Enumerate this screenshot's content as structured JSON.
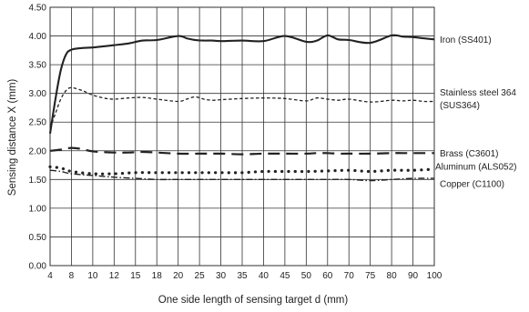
{
  "chart_data": {
    "type": "line",
    "title": "",
    "xlabel": "One side length of sensing target d (mm)",
    "ylabel": "Sensing distance X (mm)",
    "ylim": [
      0,
      4.5
    ],
    "x_tick_labels": [
      "4",
      "8",
      "10",
      "12",
      "15",
      "18",
      "20",
      "25",
      "30",
      "35",
      "40",
      "45",
      "50",
      "60",
      "70",
      "75",
      "80",
      "90",
      "100"
    ],
    "y_tick_labels": [
      "0.00",
      "0.50",
      "1.00",
      "1.50",
      "2.00",
      "2.50",
      "3.00",
      "3.50",
      "4.00",
      "4.50"
    ],
    "x_scale": "categorical, evenly spaced ticks",
    "grid": true,
    "legend": "labels at right end of each line",
    "series": [
      {
        "name": "Iron (SS401)",
        "label_lines": [
          "Iron (SS401)"
        ],
        "style": "solid",
        "x": [
          4,
          5,
          6,
          7,
          8,
          9,
          10,
          11,
          12,
          14,
          16,
          18,
          20,
          22,
          24,
          26,
          28,
          30,
          35,
          40,
          45,
          50,
          55,
          60,
          65,
          70,
          75,
          80,
          85,
          90,
          95,
          100
        ],
        "values": [
          2.3,
          2.9,
          3.4,
          3.68,
          3.76,
          3.79,
          3.8,
          3.82,
          3.84,
          3.87,
          3.92,
          3.93,
          4.0,
          3.96,
          3.93,
          3.92,
          3.92,
          3.91,
          3.92,
          3.91,
          4.0,
          3.9,
          3.92,
          4.01,
          3.94,
          3.93,
          3.88,
          4.01,
          3.99,
          3.98,
          3.96,
          3.94
        ]
      },
      {
        "name": "Stainless steel 364 (SUS364)",
        "label_lines": [
          "Stainless steel 364",
          "(SUS364)"
        ],
        "style": "dashed-short",
        "x": [
          4,
          5,
          6,
          7,
          8,
          9,
          10,
          11,
          12,
          14,
          16,
          18,
          20,
          22,
          24,
          26,
          28,
          30,
          35,
          40,
          45,
          50,
          55,
          60,
          65,
          70,
          75,
          80,
          85,
          90,
          95,
          100
        ],
        "values": [
          2.4,
          2.65,
          2.9,
          3.05,
          3.1,
          3.05,
          2.97,
          2.92,
          2.9,
          2.92,
          2.93,
          2.9,
          2.86,
          2.9,
          2.94,
          2.9,
          2.88,
          2.89,
          2.91,
          2.92,
          2.91,
          2.87,
          2.92,
          2.9,
          2.88,
          2.9,
          2.85,
          2.88,
          2.87,
          2.88,
          2.86,
          2.86
        ]
      },
      {
        "name": "Brass (C3601)",
        "label_lines": [
          "Brass (C3601)"
        ],
        "style": "dashed-long",
        "x": [
          4,
          6,
          8,
          9,
          10,
          12,
          14,
          16,
          18,
          20,
          25,
          30,
          35,
          40,
          45,
          50,
          55,
          60,
          65,
          70,
          75,
          80,
          85,
          90,
          95,
          100
        ],
        "values": [
          2.0,
          2.02,
          2.05,
          2.03,
          1.99,
          1.97,
          1.97,
          1.98,
          1.97,
          1.95,
          1.95,
          1.95,
          1.94,
          1.95,
          1.95,
          1.95,
          1.96,
          1.96,
          1.95,
          1.95,
          1.95,
          1.96,
          1.96,
          1.96,
          1.96,
          1.96
        ]
      },
      {
        "name": "Aluminum (ALS052)",
        "label_lines": [
          "Aluminum (ALS052)"
        ],
        "style": "dotted",
        "x": [
          4,
          6,
          8,
          10,
          12,
          15,
          18,
          20,
          25,
          30,
          35,
          40,
          45,
          50,
          60,
          70,
          75,
          80,
          90,
          100
        ],
        "values": [
          1.72,
          1.7,
          1.64,
          1.6,
          1.6,
          1.62,
          1.62,
          1.62,
          1.62,
          1.62,
          1.62,
          1.64,
          1.64,
          1.64,
          1.65,
          1.66,
          1.64,
          1.66,
          1.66,
          1.68
        ]
      },
      {
        "name": "Copper (C1100)",
        "label_lines": [
          "Copper (C1100)"
        ],
        "style": "dash-dot",
        "x": [
          4,
          6,
          8,
          10,
          12,
          15,
          18,
          20,
          25,
          30,
          35,
          40,
          45,
          50,
          60,
          70,
          75,
          80,
          90,
          100
        ],
        "values": [
          1.66,
          1.64,
          1.6,
          1.57,
          1.54,
          1.52,
          1.5,
          1.5,
          1.5,
          1.5,
          1.5,
          1.5,
          1.5,
          1.5,
          1.5,
          1.5,
          1.48,
          1.5,
          1.52,
          1.52
        ]
      }
    ],
    "colors": {
      "line": "#222222",
      "grid": "#333333",
      "background": "#ffffff"
    }
  }
}
